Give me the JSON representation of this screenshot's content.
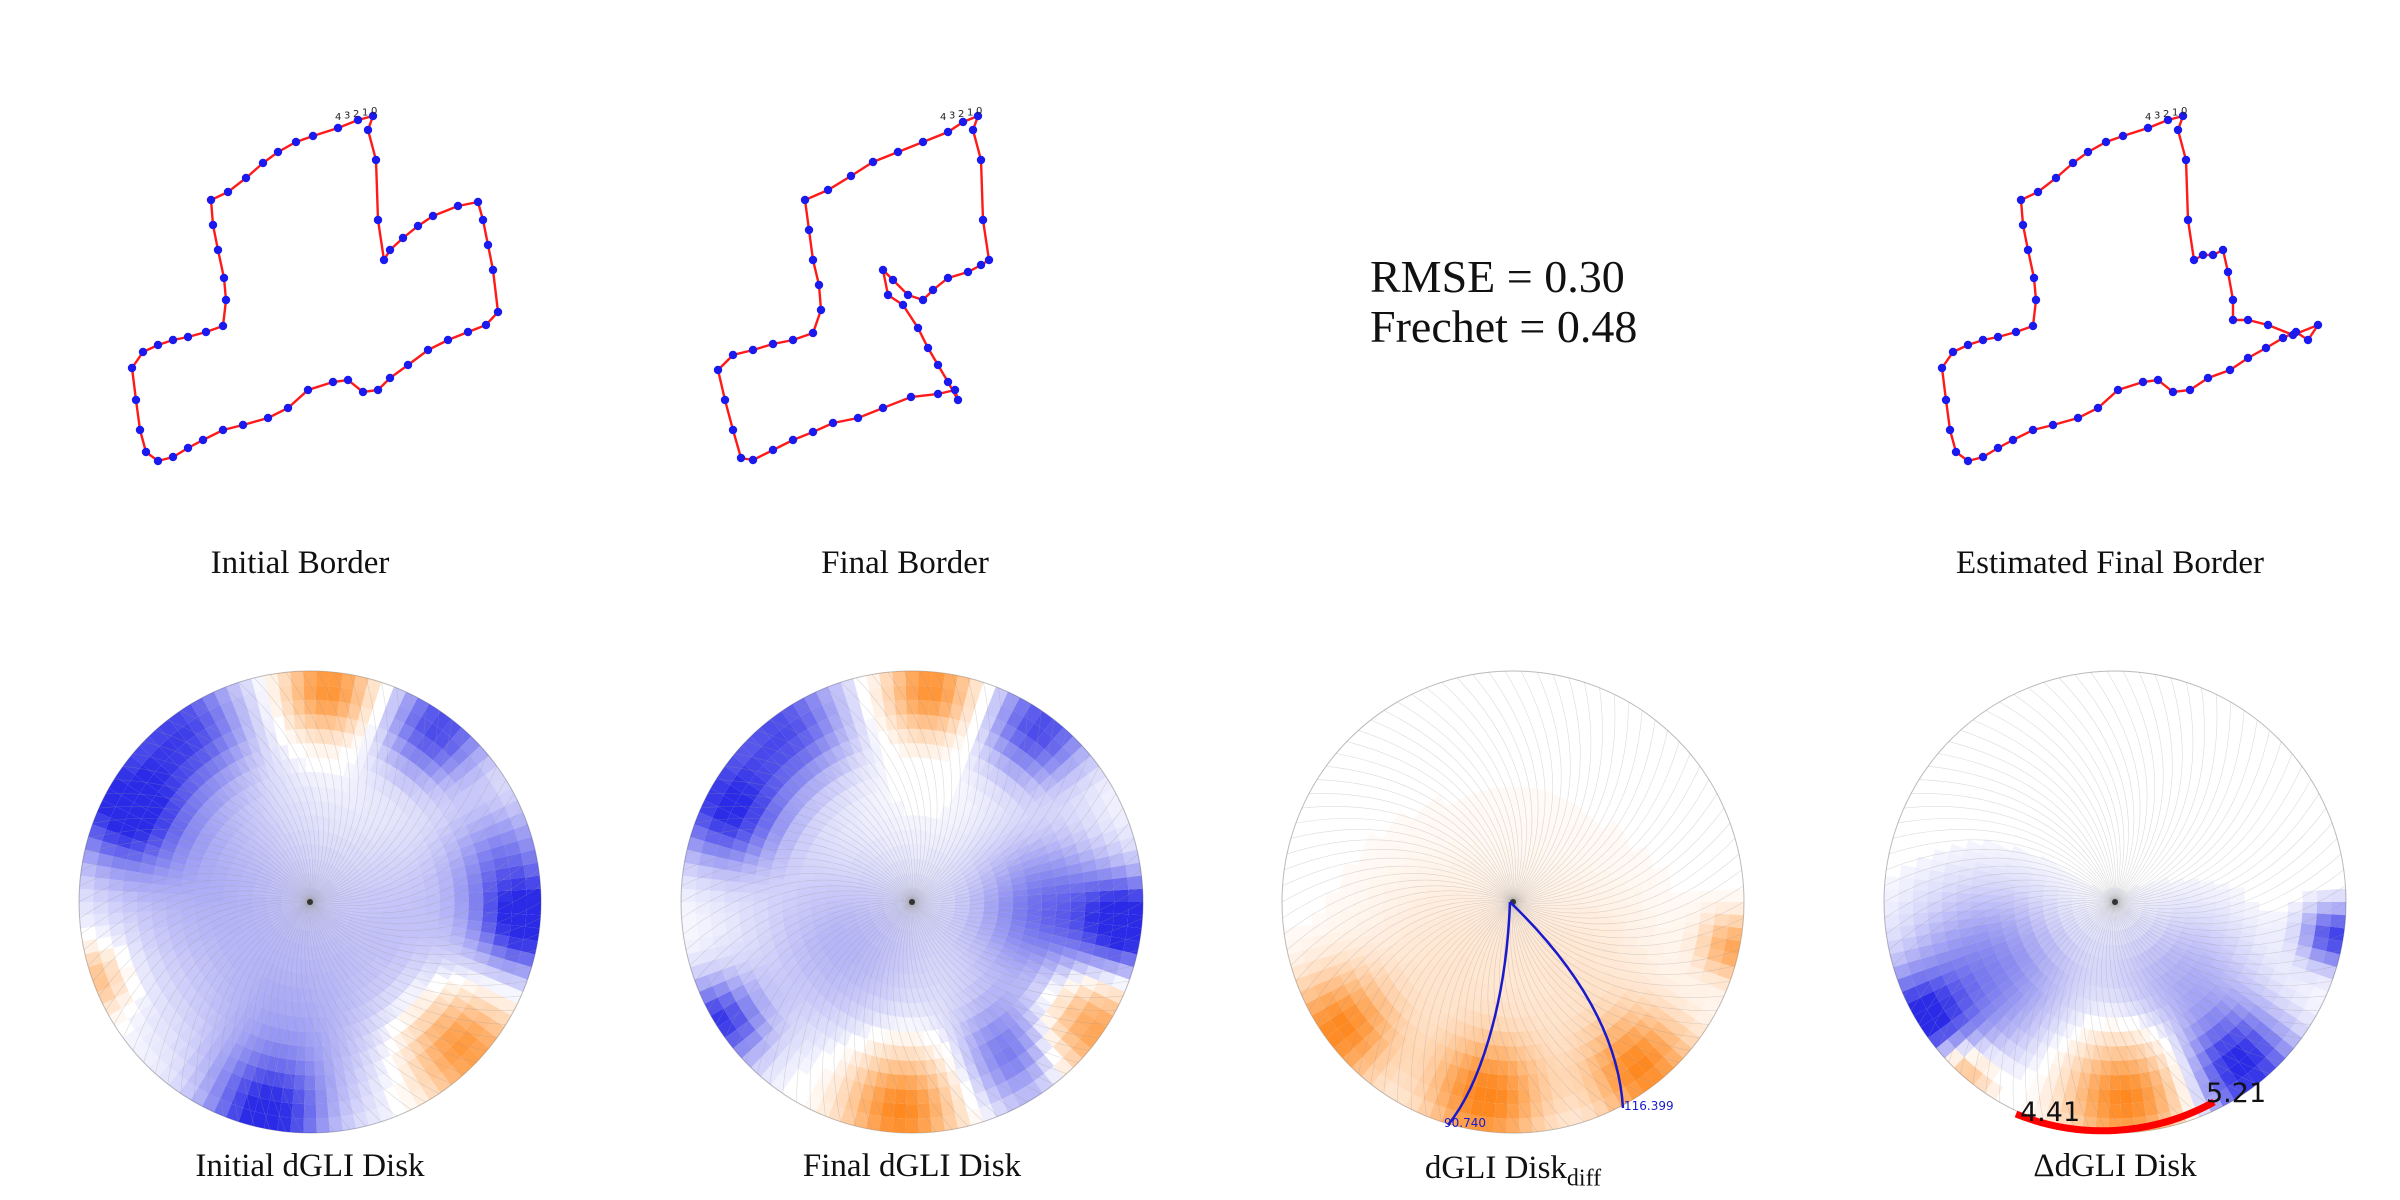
{
  "borders": {
    "initial": {
      "caption": "Initial Border"
    },
    "final": {
      "caption": "Final Border"
    },
    "estimated": {
      "caption": "Estimated Final Border"
    },
    "vertex_labels": [
      "0",
      "1",
      "2",
      "3",
      "4"
    ]
  },
  "metrics": {
    "rmse_label": "RMSE = 0.30",
    "frechet_label": "Frechet = 0.48"
  },
  "disks": {
    "initial": {
      "caption": "Initial dGLI Disk"
    },
    "final": {
      "caption": "Final dGLI Disk"
    },
    "diff": {
      "caption_main": "dGLI Disk",
      "caption_sub": "diff"
    },
    "delta": {
      "caption": "ΔdGLI Disk"
    }
  },
  "arc_labels": {
    "left": "90.740",
    "right": "116.399"
  },
  "delta_labels": {
    "left": "4.41",
    "right": "5.21"
  },
  "colors": {
    "border_line": "#ff1a1a",
    "border_vertex": "#1a1aee",
    "positive": "#ff7f0e",
    "negative": "#1f1fe6",
    "arc": "#1a1acc",
    "delta_arc": "#ff0000"
  }
}
